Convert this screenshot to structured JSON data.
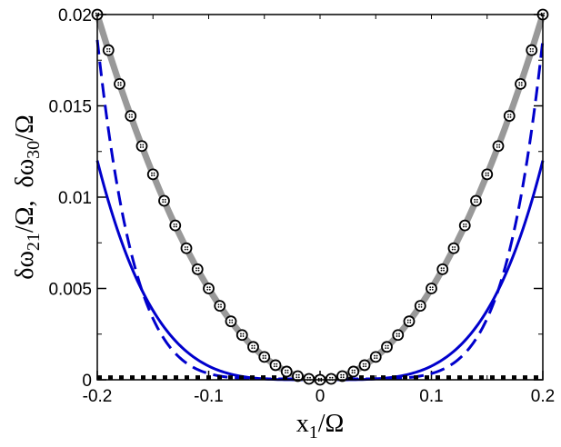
{
  "chart_data": {
    "type": "line",
    "xlabel": "x",
    "xlabel_sub": "1",
    "xlabel_suffix": "/Ω",
    "ylabel_parts": [
      {
        "text": "δω",
        "sub": "21",
        "suffix": "/Ω,"
      },
      {
        "text": "δω",
        "sub": "30",
        "suffix": "/Ω"
      }
    ],
    "xlim": [
      -0.2,
      0.2
    ],
    "ylim": [
      0,
      0.02
    ],
    "x_ticks": [
      -0.2,
      -0.1,
      0,
      0.1,
      0.2
    ],
    "x_tick_labels": [
      "-0.2",
      "-0.1",
      "0",
      "0.1",
      "0.2"
    ],
    "y_ticks": [
      0,
      0.005,
      0.01,
      0.015,
      0.02
    ],
    "y_tick_labels": [
      "0",
      "0.005",
      "0.01",
      "0.015",
      "0.02"
    ],
    "grid": false,
    "series": [
      {
        "style": "thick-gray-solid",
        "color": "#999999",
        "model": "quadratic",
        "coef": 0.5
      },
      {
        "style": "circle-markers",
        "color": "#000000",
        "model": "quadratic",
        "coef": 0.5,
        "marker_step": 0.01
      },
      {
        "style": "blue-solid",
        "color": "#0000cc",
        "model": "quartic",
        "coef": 7.5
      },
      {
        "style": "blue-dashed",
        "color": "#0000cc",
        "model": "power6",
        "coef": 290
      },
      {
        "style": "black-dotted",
        "color": "#000000",
        "model": "constant",
        "value": 0.00012
      }
    ]
  }
}
